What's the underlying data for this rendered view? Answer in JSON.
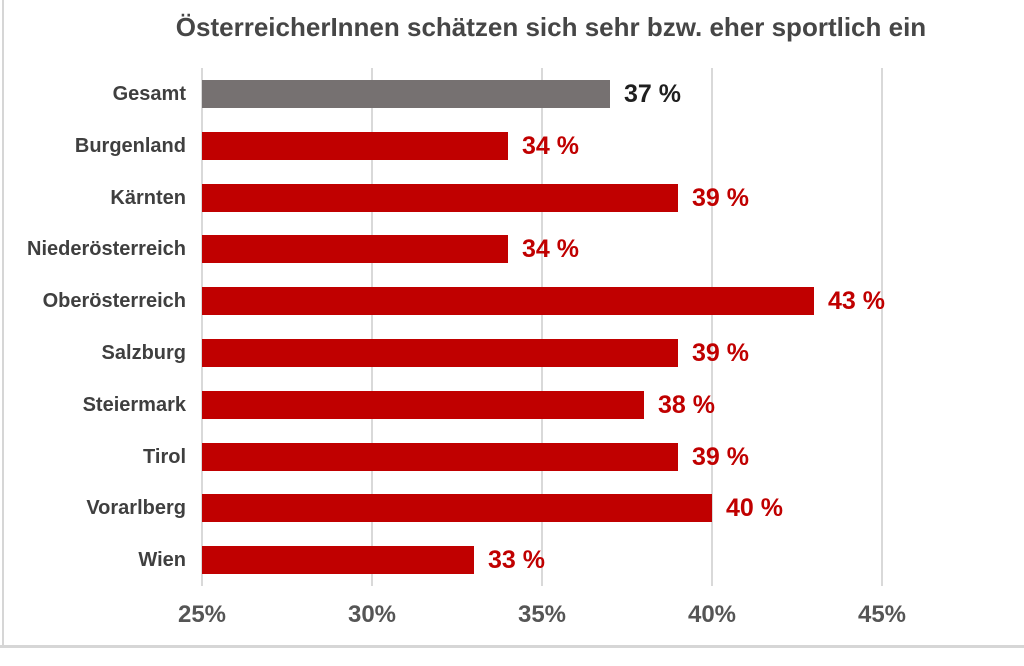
{
  "colors": {
    "background": "#FFFFFF",
    "bar_red": "#C00000",
    "bar_gray_highlight": "#767171",
    "value_label_dark": "#1F1F1F",
    "category_label": "#3F3F3F",
    "tick_label": "#555555",
    "title_text": "#464646",
    "gridline": "#D9D9D9",
    "frame_border": "#D6D6D6"
  },
  "chart_data": {
    "type": "bar",
    "orientation": "horizontal",
    "title": "ÖsterreicherInnen schätzen sich sehr bzw. eher sportlich ein",
    "categories": [
      "Gesamt",
      "Burgenland",
      "Kärnten",
      "Niederösterreich",
      "Oberösterreich",
      "Salzburg",
      "Steiermark",
      "Tirol",
      "Vorarlberg",
      "Wien"
    ],
    "values": [
      37,
      34,
      39,
      34,
      43,
      39,
      38,
      39,
      40,
      33
    ],
    "value_labels": [
      "37 %",
      "34 %",
      "39 %",
      "34 %",
      "43 %",
      "39 %",
      "38 %",
      "39 %",
      "40 %",
      "33 %"
    ],
    "highlight_category": "Gesamt",
    "highlight_index": 0,
    "unit": "percent",
    "xlim": [
      25,
      48
    ],
    "x_ticks": [
      {
        "value": 25,
        "label": "25%"
      },
      {
        "value": 30,
        "label": "30%"
      },
      {
        "value": 35,
        "label": "35%"
      },
      {
        "value": 40,
        "label": "40%"
      },
      {
        "value": 45,
        "label": "45%"
      }
    ],
    "grid": true,
    "legend": false
  }
}
